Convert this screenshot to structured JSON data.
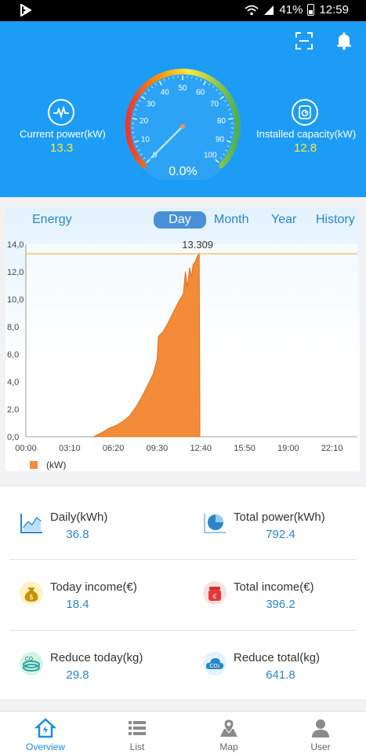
{
  "status_bar": {
    "battery": "41%",
    "time": "12:59"
  },
  "header": {
    "current_power": {
      "label": "Current power(kW)",
      "value": "13.3"
    },
    "installed_capacity": {
      "label": "Installed capacity(kW)",
      "value": "12.8"
    },
    "gauge": {
      "percent_label": "0.0%",
      "ticks": [
        "0",
        "10",
        "20",
        "30",
        "40",
        "50",
        "60",
        "70",
        "80",
        "90",
        "100"
      ],
      "needle_value": 0
    },
    "colors": {
      "background": "#1c9cf5",
      "value": "#ffeb3b"
    },
    "icons": [
      "scan-icon",
      "bell-icon",
      "power-wave-icon",
      "capacity-icon"
    ]
  },
  "chart_tabs": {
    "energy_label": "Energy",
    "items": [
      "Day",
      "Month",
      "Year",
      "History"
    ],
    "active": "Day"
  },
  "chart_data": {
    "type": "area",
    "x_ticks": [
      "00:00",
      "03:10",
      "06:20",
      "09:30",
      "12:40",
      "15:50",
      "19:00",
      "22:10"
    ],
    "y_ticks": [
      "0,0",
      "2,0",
      "4,0",
      "6,0",
      "8,0",
      "10,0",
      "12,0",
      "14,0"
    ],
    "ylim": [
      0,
      14
    ],
    "xlim_hours": [
      0,
      24
    ],
    "max_label": "13.309",
    "max_value": 13.309,
    "legend": "(kW)",
    "color": "#f28c38",
    "series": [
      {
        "values": [
          [
            4.9,
            0
          ],
          [
            5.5,
            0.3
          ],
          [
            6.0,
            0.6
          ],
          [
            6.5,
            0.8
          ],
          [
            7.0,
            1.1
          ],
          [
            7.5,
            1.5
          ],
          [
            8.0,
            2.2
          ],
          [
            8.4,
            2.9
          ],
          [
            8.8,
            3.7
          ],
          [
            9.2,
            4.5
          ],
          [
            9.5,
            5.6
          ],
          [
            9.6,
            7.3
          ],
          [
            9.9,
            7.6
          ],
          [
            10.2,
            8.1
          ],
          [
            10.5,
            8.7
          ],
          [
            10.8,
            9.3
          ],
          [
            11.1,
            9.9
          ],
          [
            11.4,
            10.4
          ],
          [
            11.55,
            12.0
          ],
          [
            11.7,
            10.9
          ],
          [
            11.85,
            12.3
          ],
          [
            12.0,
            11.6
          ],
          [
            12.1,
            12.5
          ],
          [
            12.25,
            12.7
          ],
          [
            12.4,
            13.1
          ],
          [
            12.55,
            13.309
          ],
          [
            12.6,
            0
          ]
        ]
      }
    ]
  },
  "stats": [
    {
      "label": "Daily(kWh)",
      "value": "36.8",
      "icon": "line-chart-icon"
    },
    {
      "label": "Total power(kWh)",
      "value": "792.4",
      "icon": "pie-chart-icon"
    },
    {
      "label": "Today income(€)",
      "value": "18.4",
      "icon": "money-bag-icon"
    },
    {
      "label": "Total income(€)",
      "value": "396.2",
      "icon": "money-jar-icon"
    },
    {
      "label": "Reduce today(kg)",
      "value": "29.8",
      "icon": "co2-leaf-icon"
    },
    {
      "label": "Reduce total(kg)",
      "value": "641.8",
      "icon": "co2-cloud-icon"
    }
  ],
  "bottom_nav": {
    "items": [
      {
        "label": "Overview",
        "icon": "home-icon"
      },
      {
        "label": "List",
        "icon": "list-icon"
      },
      {
        "label": "Map",
        "icon": "map-icon"
      },
      {
        "label": "User",
        "icon": "user-icon"
      }
    ],
    "active": "Overview"
  }
}
